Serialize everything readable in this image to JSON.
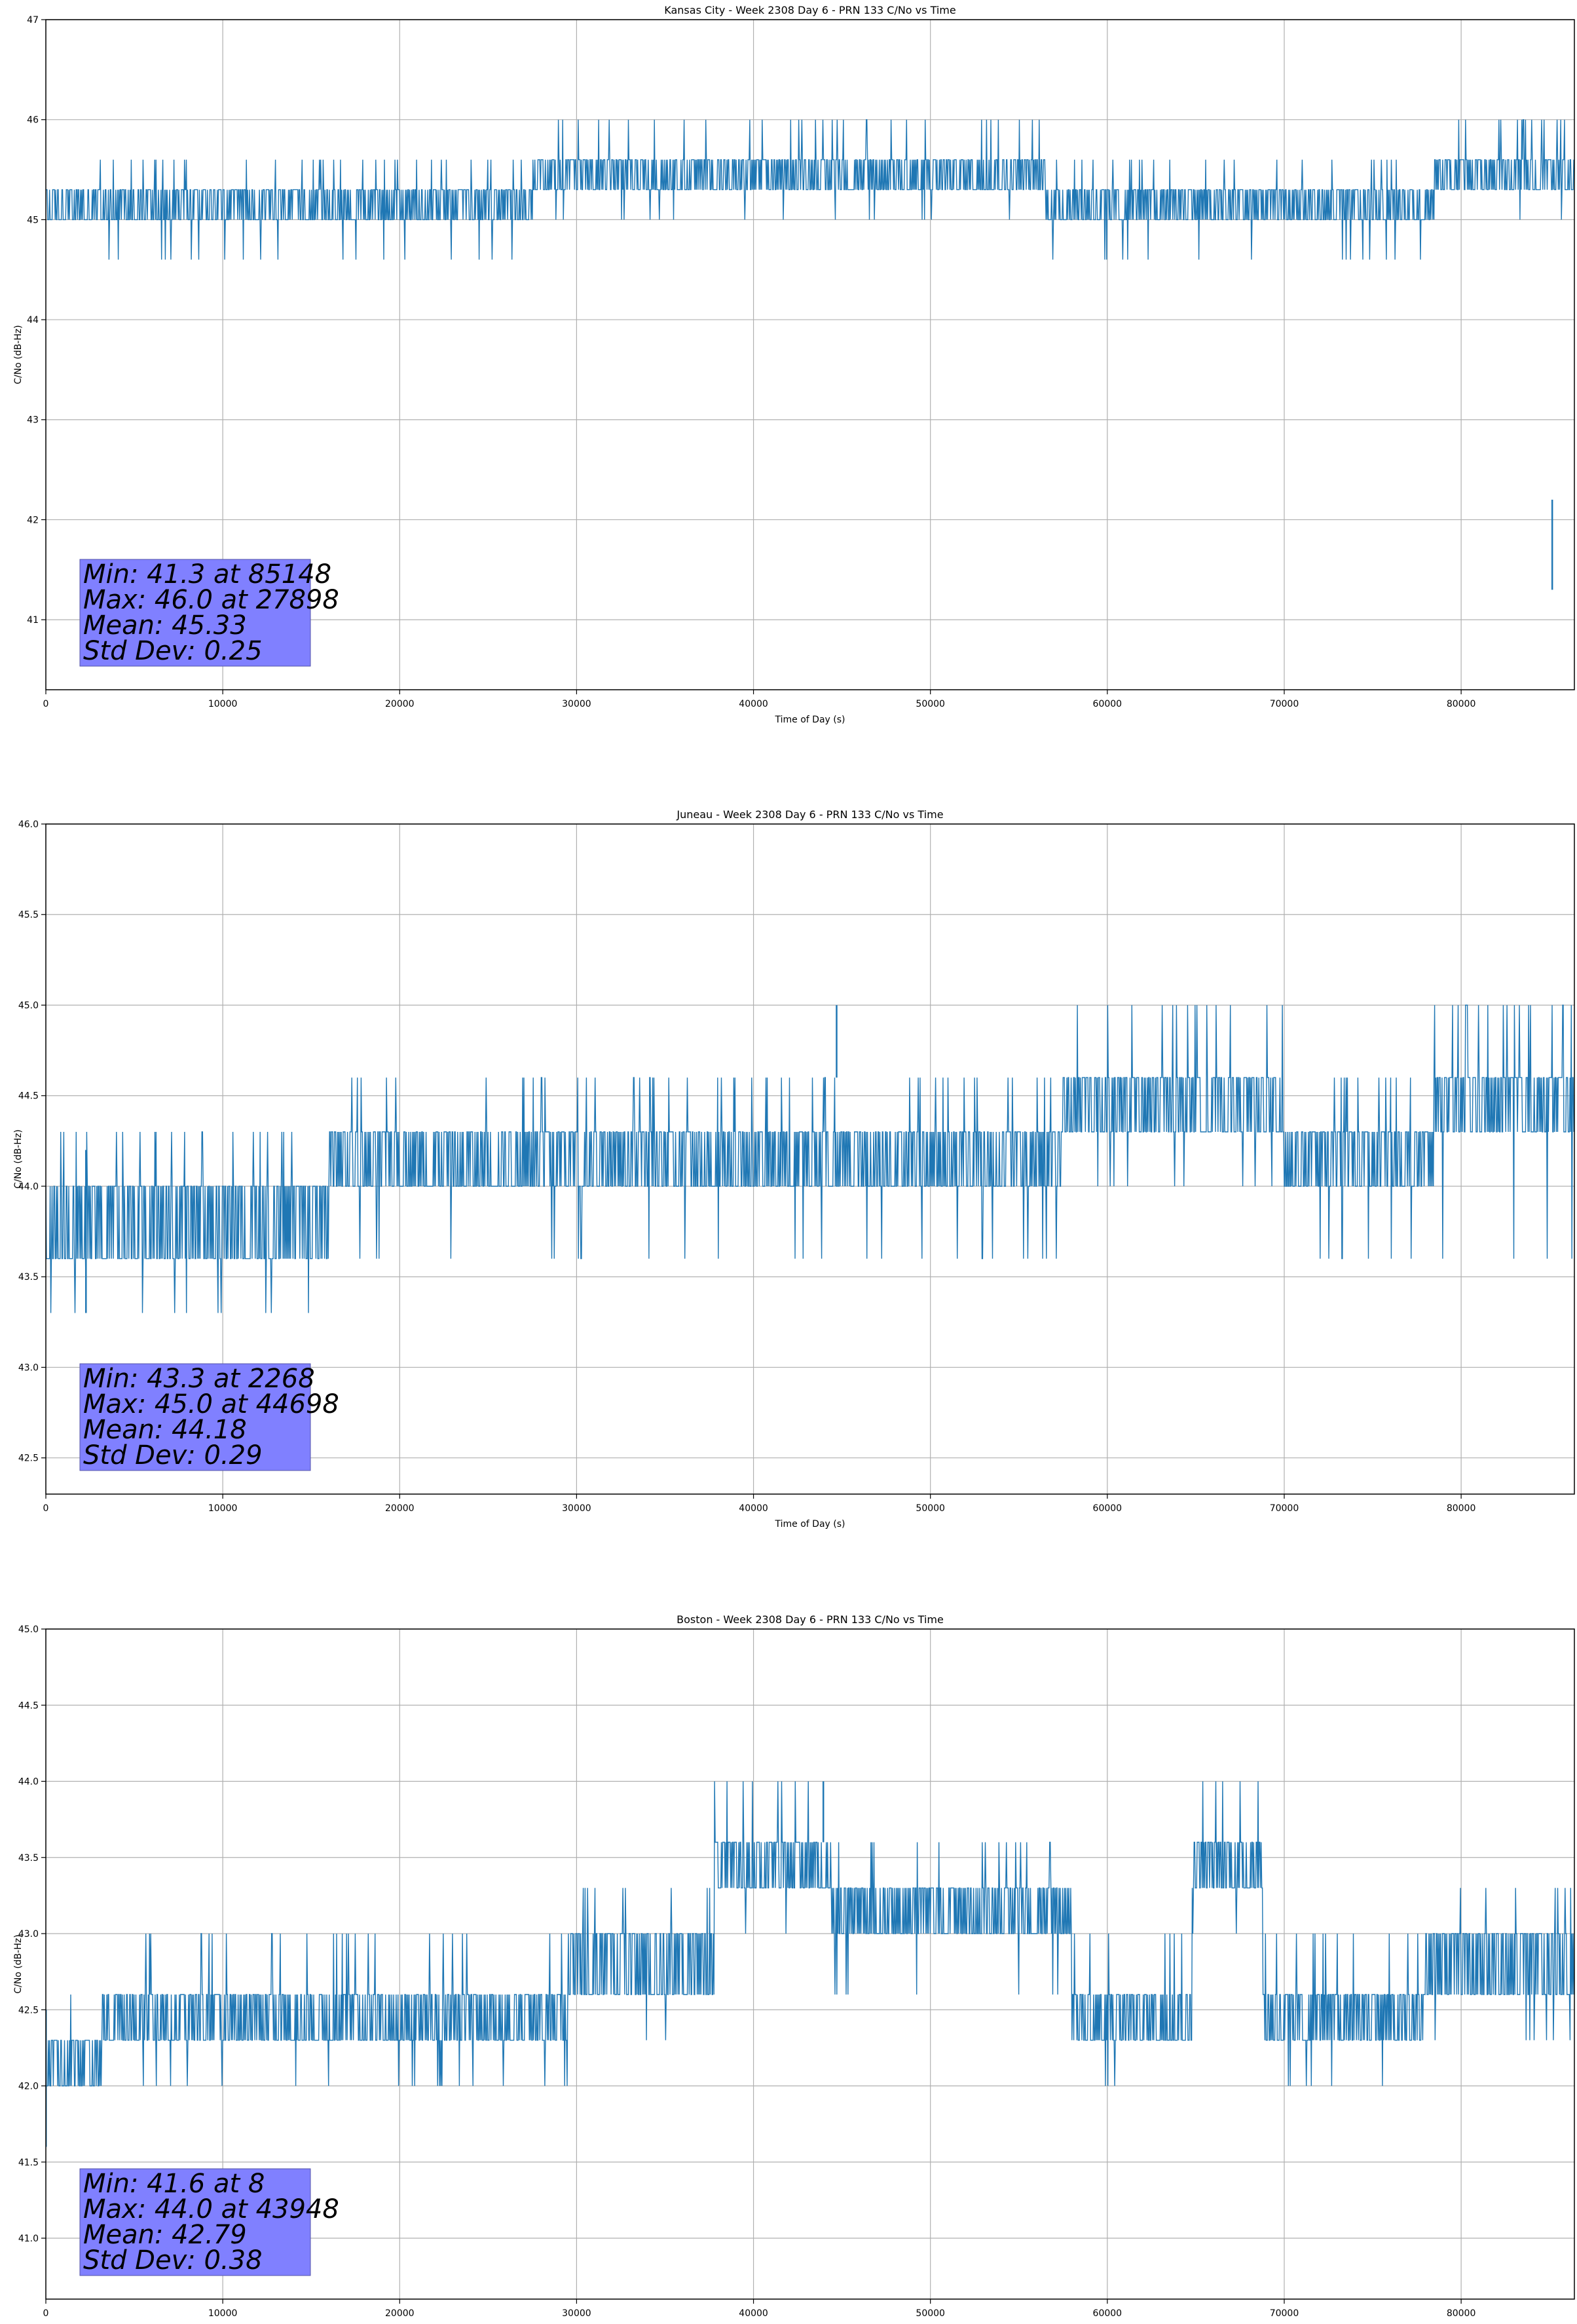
{
  "chart_data": [
    {
      "type": "line",
      "title": "Kansas City - Week 2308 Day 6 - PRN 133 C/No vs Time",
      "xlabel": "Time of Day (s)",
      "ylabel": "C/No (dB-Hz)",
      "xlim": [
        0,
        86400
      ],
      "ylim": [
        40.3,
        47.0
      ],
      "xticks": [
        0,
        10000,
        20000,
        30000,
        40000,
        50000,
        60000,
        70000,
        80000
      ],
      "xtick_labels": [
        "0",
        "10000",
        "20000",
        "30000",
        "40000",
        "50000",
        "60000",
        "70000",
        "80000"
      ],
      "yticks": [
        41,
        42,
        43,
        44,
        45,
        46,
        47
      ],
      "ytick_labels": [
        "41",
        "42",
        "43",
        "44",
        "45",
        "46",
        "47"
      ],
      "grid": true,
      "series_color": "#1f77b4",
      "bands": [
        {
          "x0": 0,
          "x1": 27500,
          "lo": 45.0,
          "hi": 45.3,
          "hi_spike": 45.6,
          "lo_spike": 44.6
        },
        {
          "x0": 27500,
          "x1": 40000,
          "lo": 45.3,
          "hi": 45.6,
          "hi_spike": 46.0,
          "lo_spike": 45.0
        },
        {
          "x0": 40000,
          "x1": 56500,
          "lo": 45.3,
          "hi": 45.6,
          "hi_spike": 46.0,
          "lo_spike": 45.0
        },
        {
          "x0": 56500,
          "x1": 78500,
          "lo": 45.0,
          "hi": 45.3,
          "hi_spike": 45.6,
          "lo_spike": 44.6
        },
        {
          "x0": 78500,
          "x1": 86400,
          "lo": 45.3,
          "hi": 45.6,
          "hi_spike": 46.0,
          "lo_spike": 45.0
        }
      ],
      "spikes": [
        {
          "x": 85148,
          "y": 41.3
        }
      ],
      "stats": {
        "min": "Min: 41.3 at 85148",
        "max": "Max: 46.0 at 27898",
        "mean": "Mean: 45.33",
        "std": "Std Dev: 0.25"
      }
    },
    {
      "type": "line",
      "title": "Juneau - Week 2308 Day 6 - PRN 133 C/No vs Time",
      "xlabel": "Time of Day (s)",
      "ylabel": "C/No (dB-Hz)",
      "xlim": [
        0,
        86400
      ],
      "ylim": [
        42.3,
        46.0
      ],
      "xticks": [
        0,
        10000,
        20000,
        30000,
        40000,
        50000,
        60000,
        70000,
        80000
      ],
      "xtick_labels": [
        "0",
        "10000",
        "20000",
        "30000",
        "40000",
        "50000",
        "60000",
        "70000",
        "80000"
      ],
      "yticks": [
        42.5,
        43.0,
        43.5,
        44.0,
        44.5,
        45.0,
        45.5,
        46.0
      ],
      "ytick_labels": [
        "42.5",
        "43.0",
        "43.5",
        "44.0",
        "44.5",
        "45.0",
        "45.5",
        "46.0"
      ],
      "grid": true,
      "series_color": "#1f77b4",
      "bands": [
        {
          "x0": 0,
          "x1": 16000,
          "lo": 43.6,
          "hi": 44.0,
          "hi_spike": 44.3,
          "lo_spike": 43.3
        },
        {
          "x0": 16000,
          "x1": 57500,
          "lo": 44.0,
          "hi": 44.3,
          "hi_spike": 44.6,
          "lo_spike": 43.6
        },
        {
          "x0": 57500,
          "x1": 70000,
          "lo": 44.3,
          "hi": 44.6,
          "hi_spike": 45.0,
          "lo_spike": 44.0
        },
        {
          "x0": 70000,
          "x1": 78500,
          "lo": 44.0,
          "hi": 44.3,
          "hi_spike": 44.6,
          "lo_spike": 43.6
        },
        {
          "x0": 78500,
          "x1": 86400,
          "lo": 44.3,
          "hi": 44.6,
          "hi_spike": 45.0,
          "lo_spike": 43.6
        }
      ],
      "spikes": [
        {
          "x": 2268,
          "y": 43.3
        },
        {
          "x": 44698,
          "y": 45.0
        }
      ],
      "stats": {
        "min": "Min: 43.3 at 2268",
        "max": "Max: 45.0 at 44698",
        "mean": "Mean: 44.18",
        "std": "Std Dev: 0.29"
      }
    },
    {
      "type": "line",
      "title": "Boston - Week 2308 Day 6 - PRN 133 C/No vs Time",
      "xlabel": "Time of Day (s)",
      "ylabel": "C/No (dB-Hz)",
      "xlim": [
        0,
        86400
      ],
      "ylim": [
        40.6,
        45.0
      ],
      "xticks": [
        0,
        10000,
        20000,
        30000,
        40000,
        50000,
        60000,
        70000,
        80000
      ],
      "xtick_labels": [
        "0",
        "10000",
        "20000",
        "30000",
        "40000",
        "50000",
        "60000",
        "70000",
        "80000"
      ],
      "yticks": [
        41.0,
        41.5,
        42.0,
        42.5,
        43.0,
        43.5,
        44.0,
        44.5,
        45.0
      ],
      "ytick_labels": [
        "41.0",
        "41.5",
        "42.0",
        "42.5",
        "43.0",
        "43.5",
        "44.0",
        "44.5",
        "45.0"
      ],
      "grid": true,
      "series_color": "#1f77b4",
      "bands": [
        {
          "x0": 0,
          "x1": 3200,
          "lo": 42.0,
          "hi": 42.3,
          "hi_spike": 42.6,
          "lo_spike": 42.0
        },
        {
          "x0": 3200,
          "x1": 29500,
          "lo": 42.3,
          "hi": 42.6,
          "hi_spike": 43.0,
          "lo_spike": 42.0
        },
        {
          "x0": 29500,
          "x1": 37800,
          "lo": 42.6,
          "hi": 43.0,
          "hi_spike": 43.3,
          "lo_spike": 42.3
        },
        {
          "x0": 37800,
          "x1": 44500,
          "lo": 43.3,
          "hi": 43.6,
          "hi_spike": 44.0,
          "lo_spike": 43.0
        },
        {
          "x0": 44500,
          "x1": 58000,
          "lo": 43.0,
          "hi": 43.3,
          "hi_spike": 43.6,
          "lo_spike": 42.6
        },
        {
          "x0": 58000,
          "x1": 64800,
          "lo": 42.3,
          "hi": 42.6,
          "hi_spike": 43.0,
          "lo_spike": 42.0
        },
        {
          "x0": 64800,
          "x1": 68800,
          "lo": 43.3,
          "hi": 43.6,
          "hi_spike": 44.0,
          "lo_spike": 43.0
        },
        {
          "x0": 68800,
          "x1": 78000,
          "lo": 42.3,
          "hi": 42.6,
          "hi_spike": 43.0,
          "lo_spike": 42.0
        },
        {
          "x0": 78000,
          "x1": 86400,
          "lo": 42.6,
          "hi": 43.0,
          "hi_spike": 43.3,
          "lo_spike": 42.3
        }
      ],
      "spikes": [
        {
          "x": 8,
          "y": 41.6
        },
        {
          "x": 43948,
          "y": 44.0
        }
      ],
      "stats": {
        "min": "Min: 41.6 at 8",
        "max": "Max: 44.0 at 43948",
        "mean": "Mean: 42.79",
        "std": "Std Dev: 0.38"
      }
    }
  ]
}
